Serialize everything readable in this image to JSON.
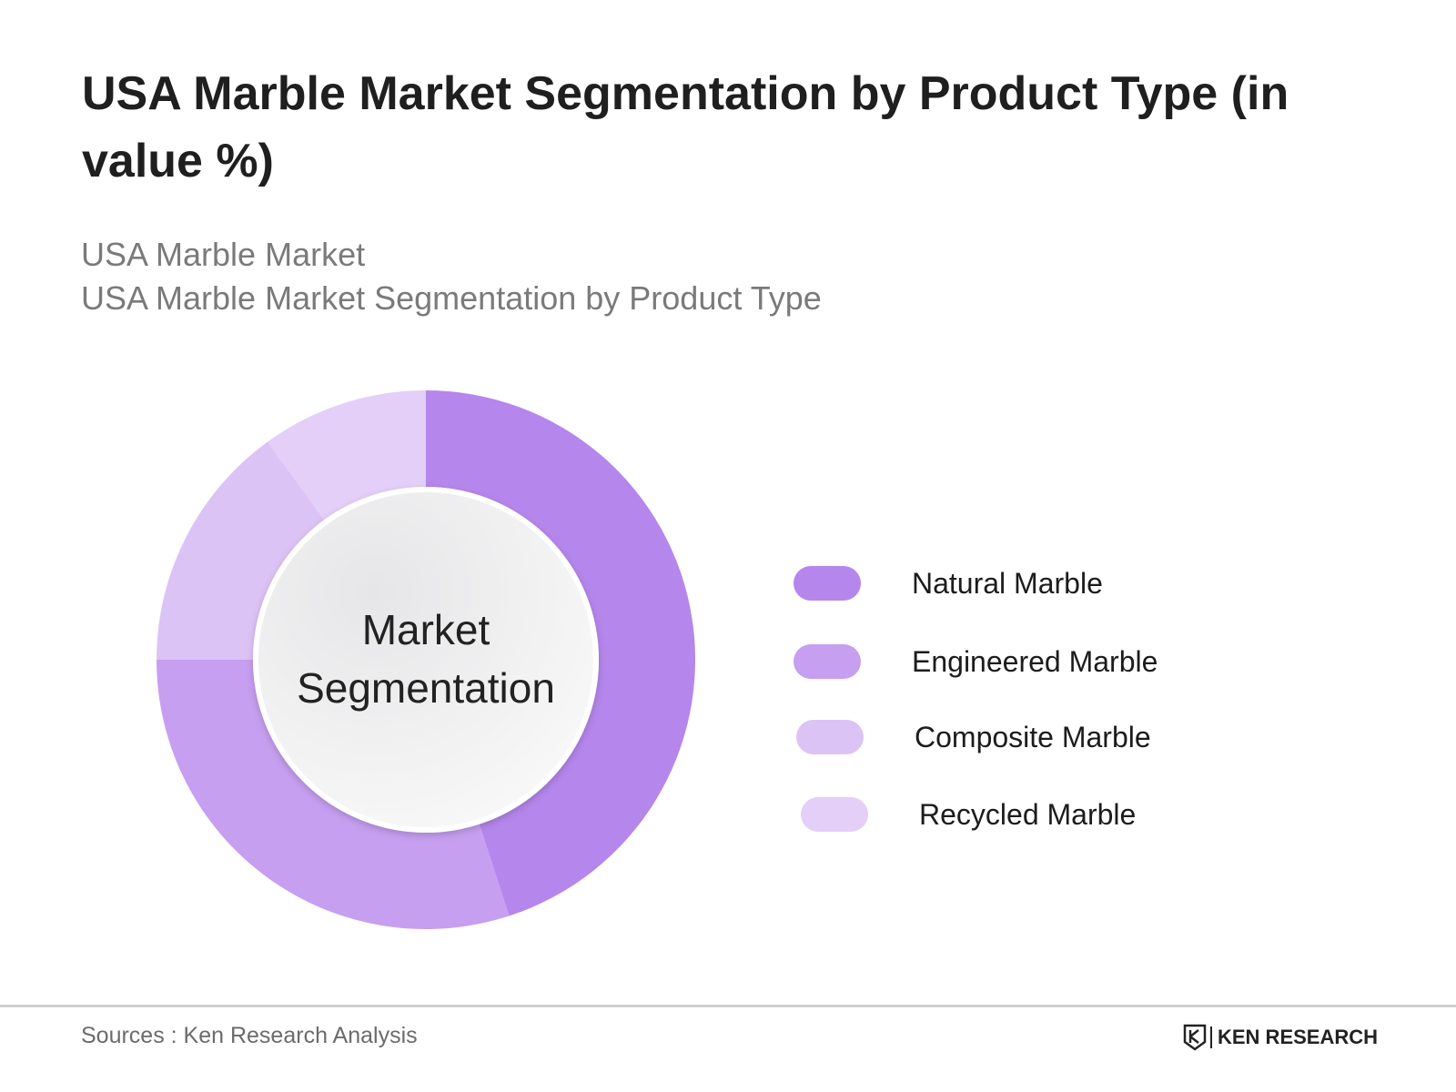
{
  "header": {
    "title": "USA Marble Market Segmentation by Product Type (in value %)",
    "subtitle_1": "USA Marble Market",
    "subtitle_2": "USA Marble Market Segmentation by Product Type"
  },
  "chart_data": {
    "type": "pie",
    "title": "USA Marble Market Segmentation by Product Type (in value %)",
    "center_label": "Market Segmentation",
    "categories": [
      "Natural Marble",
      "Engineered Marble",
      "Composite Marble",
      "Recycled Marble"
    ],
    "values": [
      45,
      30,
      15,
      10
    ],
    "colors": [
      "#b586ec",
      "#c69ff0",
      "#dcc3f5",
      "#e3cff7"
    ],
    "legend_position": "right"
  },
  "footer": {
    "source": "Sources : Ken Research Analysis",
    "brand": "KEN RESEARCH"
  }
}
